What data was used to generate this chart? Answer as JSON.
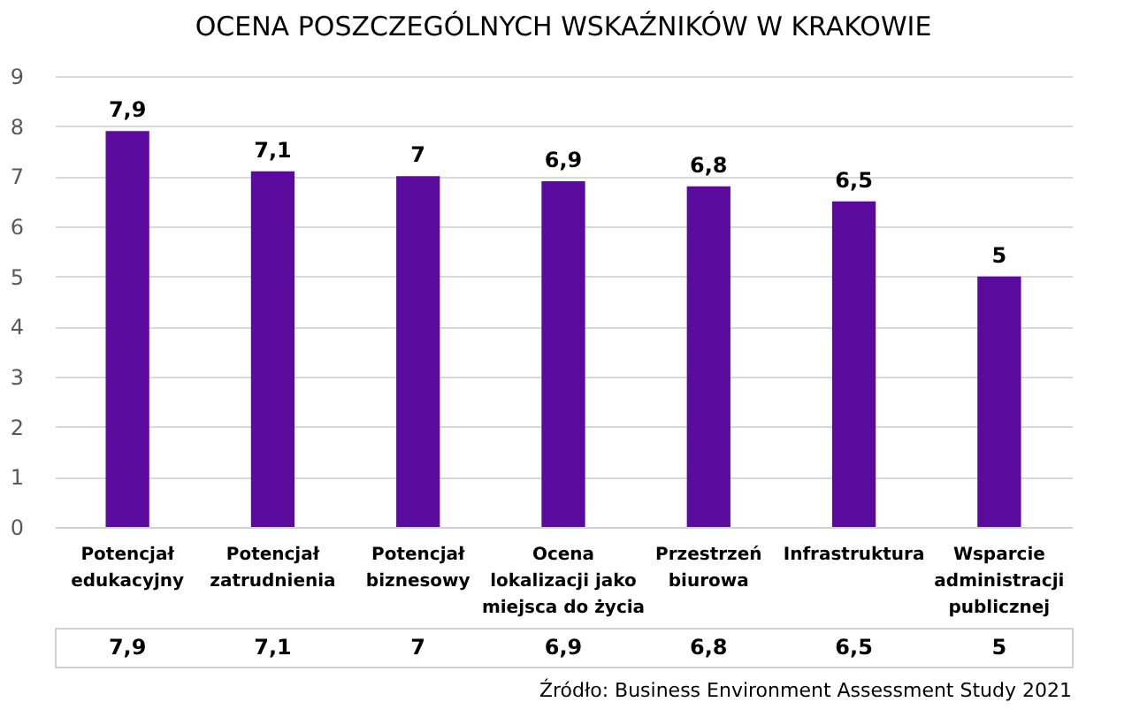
{
  "chart_data": {
    "type": "bar",
    "title": "OCENA POSZCZEGÓLNYCH WSKAŹNIKÓW W KRAKOWIE",
    "categories": [
      "Potencjał edukacyjny",
      "Potencjał zatrudnienia",
      "Potencjał biznesowy",
      "Ocena lokalizacji jako miejsca do życia",
      "Przestrzeń biurowa",
      "Infrastruktura",
      "Wsparcie administracji publicznej"
    ],
    "values": [
      7.9,
      7.1,
      7,
      6.9,
      6.8,
      6.5,
      5
    ],
    "value_labels": [
      "7,9",
      "7,1",
      "7",
      "6,9",
      "6,8",
      "6,5",
      "5"
    ],
    "color": "#5a0a9c",
    "ylim": [
      0,
      9
    ],
    "yticks": [
      0,
      1,
      2,
      3,
      4,
      5,
      6,
      7,
      8,
      9
    ],
    "grid": "y",
    "annotations": [
      "Źródło: Business Environment Assessment Study 2021"
    ]
  }
}
